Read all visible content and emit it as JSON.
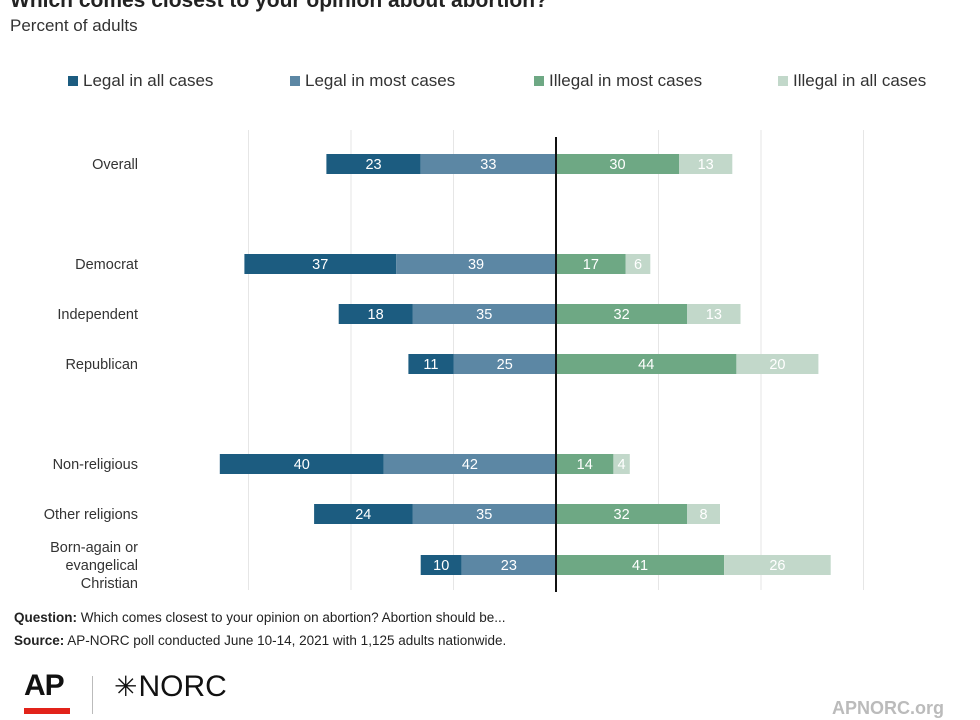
{
  "title": "Which comes closest to your opinion about abortion?",
  "subtitle": "Percent of adults",
  "legend": [
    {
      "label": "Legal in all cases",
      "color": "#1c5c80"
    },
    {
      "label": "Legal in most cases",
      "color": "#5c87a4"
    },
    {
      "label": "Illegal in most cases",
      "color": "#6ea884"
    },
    {
      "label": "Illegal in all cases",
      "color": "#c2d8ca"
    }
  ],
  "chart_data": {
    "type": "bar",
    "orientation": "horizontal-diverging",
    "categories": [
      "Overall",
      "Democrat",
      "Independent",
      "Republican",
      "Non-religious",
      "Other religions",
      "Born-again or evangelical Christian"
    ],
    "series": [
      {
        "name": "Legal in all cases",
        "values": [
          23,
          37,
          18,
          11,
          40,
          24,
          10
        ]
      },
      {
        "name": "Legal in most cases",
        "values": [
          33,
          39,
          35,
          25,
          42,
          35,
          23
        ]
      },
      {
        "name": "Illegal in most cases",
        "values": [
          30,
          17,
          32,
          44,
          14,
          32,
          41
        ]
      },
      {
        "name": "Illegal in all cases",
        "values": [
          13,
          6,
          13,
          20,
          4,
          8,
          26
        ]
      }
    ],
    "grid": true,
    "legend_position": "top"
  },
  "footer": {
    "question_label": "Question:",
    "question_text": " Which comes closest to your opinion on abortion? Abortion should be...",
    "source_label": "Source:",
    "source_text": " AP-NORC poll conducted June 10-14, 2021 with 1,125 adults nationwide."
  },
  "logos": {
    "ap": "AP",
    "norc_star": "✳",
    "norc": "NORC",
    "site": "APNORC.org"
  }
}
